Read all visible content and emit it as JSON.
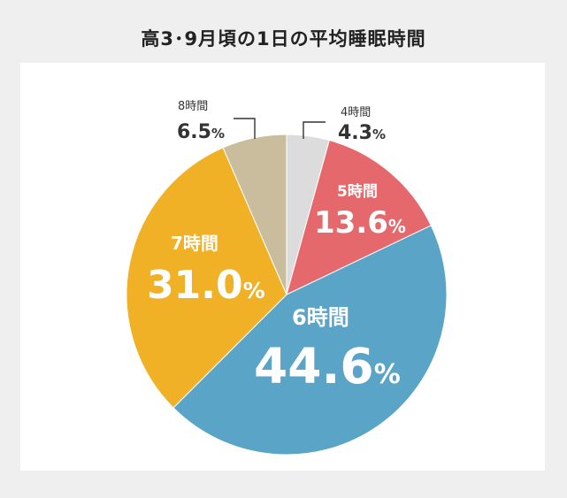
{
  "title": "高3･9月頃の1日の平均睡眠時間",
  "chart_data": {
    "type": "pie",
    "title": "高3･9月頃の1日の平均睡眠時間",
    "start_angle_deg": 0,
    "direction": "clockwise",
    "slices": [
      {
        "label": "4時間",
        "value": 4.3,
        "value_text": "4.3",
        "unit": "%",
        "color": "#dcdcdc"
      },
      {
        "label": "5時間",
        "value": 13.6,
        "value_text": "13.6",
        "unit": "%",
        "color": "#e4686c"
      },
      {
        "label": "6時間",
        "value": 44.6,
        "value_text": "44.6",
        "unit": "%",
        "color": "#5aa4c8"
      },
      {
        "label": "7時間",
        "value": 31.0,
        "value_text": "31.0",
        "unit": "%",
        "color": "#f0b127"
      },
      {
        "label": "8時間",
        "value": 6.5,
        "value_text": "6.5",
        "unit": "%",
        "color": "#c9bd9e"
      }
    ]
  }
}
